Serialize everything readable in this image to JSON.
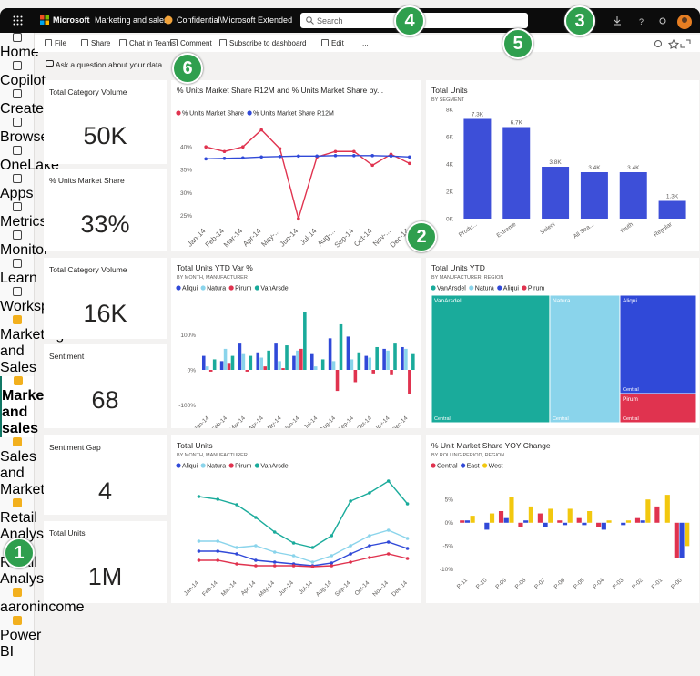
{
  "top_bar": {
    "brand": "Microsoft",
    "workspace": "Marketing and sales",
    "sensitivity": "Confidential\\Microsoft Extended",
    "search": "Search"
  },
  "toolbar": [
    "File",
    "Share",
    "Chat in Teams",
    "Comment",
    "Subscribe to dashboard",
    "Edit",
    "..."
  ],
  "qna": "Ask a question about your data",
  "nav": [
    "Home",
    "Copilot",
    "Create",
    "Browse",
    "OneLake",
    "Apps",
    "Metrics",
    "Monitor",
    "Learn",
    "Workspaces",
    "Marketing and Sales",
    "Marketing and sales",
    "Sales and Marketing...",
    "Retail Analysis...",
    "Retail Analysis...",
    "aaronincome"
  ],
  "nav_footer": "Power BI",
  "cards": [
    {
      "title": "Total Category Volume",
      "value": "50K"
    },
    {
      "title": "% Units Market Share",
      "value": "33%"
    },
    {
      "title": "Total Category Volume",
      "value": "16K"
    },
    {
      "title": "Sentiment",
      "value": "68"
    },
    {
      "title": "Sentiment Gap",
      "value": "4"
    },
    {
      "title": "Total Units",
      "value": "1M"
    }
  ],
  "callouts": [
    1,
    2,
    3,
    4,
    5,
    6
  ],
  "chart_data": [
    {
      "type": "line",
      "title": "% Units Market Share R12M and % Units Market Share by...",
      "categories": [
        "Jan-14",
        "Feb-14",
        "Mar-14",
        "Apr-14",
        "May-...",
        "Jun-14",
        "Jul-14",
        "Aug-...",
        "Sep-14",
        "Oct-14",
        "Nov-...",
        "Dec-14"
      ],
      "series": [
        {
          "name": "% Units Market Share",
          "color": "#e0334f",
          "values": [
            40,
            39,
            40,
            43.7,
            39.6,
            24.4,
            37.8,
            39,
            39,
            36,
            38.4,
            36.4
          ]
        },
        {
          "name": "% Units Market Share R12M",
          "color": "#3049d8",
          "values": [
            37.4,
            37.5,
            37.6,
            37.8,
            37.9,
            38,
            38,
            38.1,
            38.1,
            38.1,
            38,
            37.8
          ]
        }
      ],
      "ylim": [
        23,
        44
      ],
      "yticks": [
        {
          "value": 25,
          "label": "25%"
        },
        {
          "value": 30,
          "label": "30%"
        },
        {
          "value": 35,
          "label": "35%"
        },
        {
          "value": 40,
          "label": "40%"
        }
      ]
    },
    {
      "type": "bar",
      "title": "Total Units",
      "subtitle": "BY SEGMENT",
      "categories": [
        "Produ...",
        "Extreme",
        "Select",
        "All Sea...",
        "Youth",
        "Regular"
      ],
      "values": [
        7300,
        6700,
        3800,
        3400,
        3400,
        1300
      ],
      "value_labels": [
        "7.3K",
        "6.7K",
        "3.8K",
        "3.4K",
        "3.4K",
        "1.3K"
      ],
      "color": "#3d4fd8",
      "ylim": [
        0,
        8000
      ],
      "yticks": [
        {
          "value": 0,
          "label": "0K"
        },
        {
          "value": 2000,
          "label": "2K"
        },
        {
          "value": 4000,
          "label": "4K"
        },
        {
          "value": 6000,
          "label": "6K"
        },
        {
          "value": 8000,
          "label": "8K"
        }
      ]
    },
    {
      "type": "grouped_bar",
      "title": "Total Units YTD Var %",
      "subtitle": "BY MONTH, MANUFACTURER",
      "categories": [
        "Jan-14",
        "Feb-14",
        "Mar-14",
        "Apr-14",
        "May-14",
        "Jun-14",
        "Jul-14",
        "Aug-14",
        "Sep-14",
        "Oct-14",
        "Nov-14",
        "Dec-14"
      ],
      "series": [
        {
          "name": "Aliqui",
          "color": "#3049d8",
          "values": [
            40,
            25,
            75,
            50,
            75,
            40,
            45,
            90,
            95,
            40,
            60,
            65
          ]
        },
        {
          "name": "Natura",
          "color": "#8ad4eb",
          "values": [
            10,
            60,
            45,
            35,
            25,
            55,
            10,
            25,
            30,
            35,
            55,
            60
          ]
        },
        {
          "name": "Pirum",
          "color": "#e0334f",
          "values": [
            -5,
            20,
            -5,
            10,
            5,
            60,
            0,
            -60,
            -35,
            -10,
            -15,
            -70
          ]
        },
        {
          "name": "VanArsdel",
          "color": "#1aab9b",
          "values": [
            30,
            40,
            40,
            55,
            70,
            165,
            30,
            130,
            50,
            65,
            75,
            45
          ]
        }
      ],
      "ylim": [
        -120,
        180
      ],
      "yticks": [
        {
          "value": -100,
          "label": "-100%"
        },
        {
          "value": 0,
          "label": "0%"
        },
        {
          "value": 100,
          "label": "100%"
        }
      ]
    },
    {
      "type": "treemap",
      "title": "Total Units YTD",
      "subtitle": "BY MANUFACTURER, REGION",
      "series": [
        {
          "name": "VanArsdel",
          "color": "#1aab9b",
          "region": "Central",
          "value": 44.7
        },
        {
          "name": "Natura",
          "color": "#8ad4eb",
          "region": "Central",
          "value": 26.5
        },
        {
          "name": "Aliqui",
          "color": "#3049d8",
          "region": "Central",
          "value": 22.3
        },
        {
          "name": "Pirum",
          "color": "#e0334f",
          "region": "Central",
          "value": 6.6
        }
      ]
    },
    {
      "type": "line",
      "title": "Total Units",
      "subtitle": "BY MONTH, MANUFACTURER",
      "categories": [
        "Jan-14",
        "Feb-14",
        "Mar-14",
        "Apr-14",
        "May-14",
        "Jun-14",
        "Jul-14",
        "Aug-14",
        "Sep-14",
        "Oct-14",
        "Nov-14",
        "Dec-14"
      ],
      "series": [
        {
          "name": "Aliqui",
          "color": "#3049d8",
          "values": [
            28,
            28,
            25,
            18,
            16,
            14,
            12,
            15,
            25,
            34,
            38,
            31
          ]
        },
        {
          "name": "Natura",
          "color": "#8ad4eb",
          "values": [
            39,
            39,
            32,
            34,
            27,
            23,
            16,
            23,
            34,
            45,
            51,
            42
          ]
        },
        {
          "name": "Pirum",
          "color": "#e0334f",
          "values": [
            18,
            18,
            14,
            12,
            12,
            12,
            11,
            12,
            16,
            21,
            25,
            20
          ]
        },
        {
          "name": "VanArsdel",
          "color": "#1aab9b",
          "values": [
            88,
            85,
            79,
            65,
            49,
            37,
            32,
            45,
            83,
            92,
            105,
            80
          ]
        }
      ],
      "ylim": [
        0,
        110
      ]
    },
    {
      "type": "grouped_bar",
      "title": "% Unit Market Share YOY Change",
      "subtitle": "BY ROLLING PERIOD, REGION",
      "categories": [
        "P-11",
        "P-10",
        "P-09",
        "P-08",
        "P-07",
        "P-06",
        "P-05",
        "P-04",
        "P-03",
        "P-02",
        "P-01",
        "P-00"
      ],
      "series": [
        {
          "name": "Central",
          "color": "#e0334f",
          "values": [
            0.5,
            0,
            2.5,
            -1,
            2,
            0.5,
            1,
            -1,
            0,
            1,
            3.5,
            -7.5
          ]
        },
        {
          "name": "East",
          "color": "#3049d8",
          "values": [
            0.5,
            -1.5,
            1,
            0.5,
            -1,
            -0.5,
            -0.5,
            -1.5,
            -0.5,
            0.5,
            0,
            -7.5
          ]
        },
        {
          "name": "West",
          "color": "#f2c80f",
          "values": [
            1.5,
            2,
            5.5,
            3.5,
            3,
            3,
            2.5,
            0.5,
            0.5,
            5,
            6,
            -5
          ]
        }
      ],
      "ylim": [
        -11,
        7
      ],
      "yticks": [
        {
          "value": -10,
          "label": "-10%"
        },
        {
          "value": -5,
          "label": "-5%"
        },
        {
          "value": 0,
          "label": "0%"
        },
        {
          "value": 5,
          "label": "5%"
        }
      ]
    }
  ]
}
